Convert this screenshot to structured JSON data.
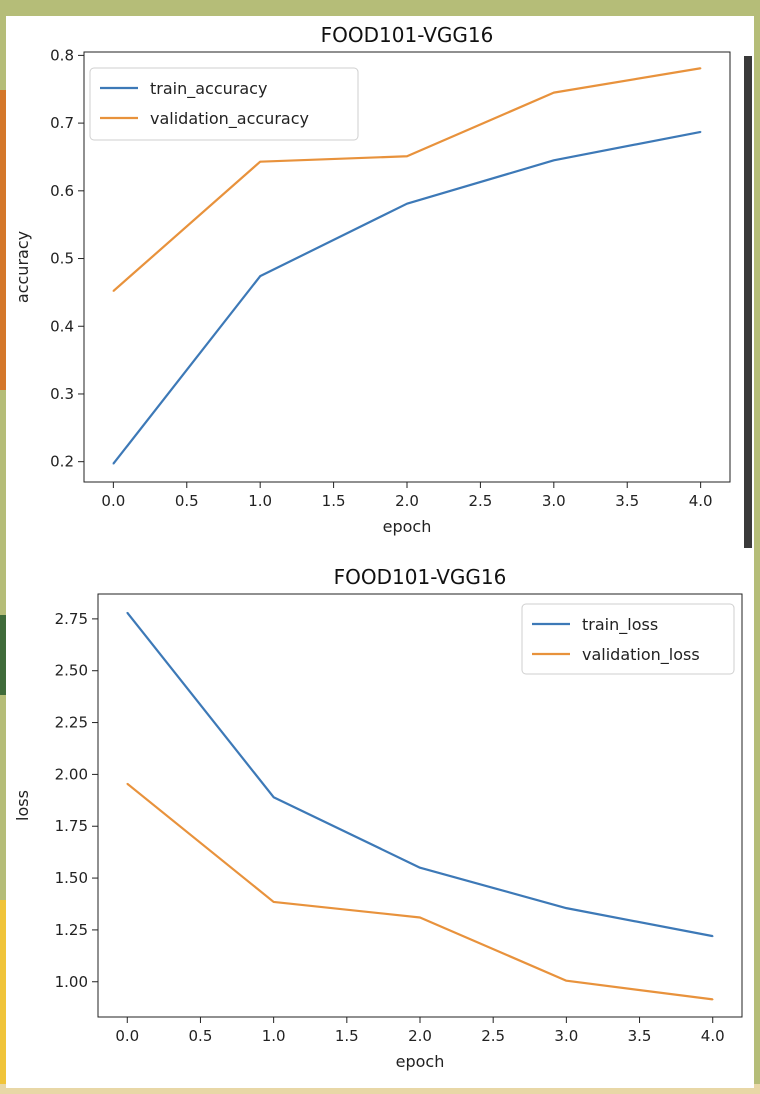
{
  "chart_data": [
    {
      "type": "line",
      "title": "FOOD101-VGG16",
      "xlabel": "epoch",
      "ylabel": "accuracy",
      "x": [
        0,
        1,
        2,
        3,
        4
      ],
      "xticks": [
        "0.0",
        "0.5",
        "1.0",
        "1.5",
        "2.0",
        "2.5",
        "3.0",
        "3.5",
        "4.0"
      ],
      "yticks": [
        "0.2",
        "0.3",
        "0.4",
        "0.5",
        "0.6",
        "0.7",
        "0.8"
      ],
      "xlim": [
        -0.2,
        4.2
      ],
      "ylim": [
        0.17,
        0.805
      ],
      "grid": false,
      "legend_position": "upper left",
      "series": [
        {
          "name": "train_accuracy",
          "color": "#3d79b7",
          "values": [
            0.197,
            0.474,
            0.581,
            0.645,
            0.687
          ]
        },
        {
          "name": "validation_accuracy",
          "color": "#e8923c",
          "values": [
            0.452,
            0.643,
            0.651,
            0.745,
            0.781
          ]
        }
      ]
    },
    {
      "type": "line",
      "title": "FOOD101-VGG16",
      "xlabel": "epoch",
      "ylabel": "loss",
      "x": [
        0,
        1,
        2,
        3,
        4
      ],
      "xticks": [
        "0.0",
        "0.5",
        "1.0",
        "1.5",
        "2.0",
        "2.5",
        "3.0",
        "3.5",
        "4.0"
      ],
      "yticks": [
        "1.00",
        "1.25",
        "1.50",
        "1.75",
        "2.00",
        "2.25",
        "2.50",
        "2.75"
      ],
      "xlim": [
        -0.2,
        4.2
      ],
      "ylim": [
        0.83,
        2.87
      ],
      "grid": false,
      "legend_position": "upper right",
      "series": [
        {
          "name": "train_loss",
          "color": "#3d79b7",
          "values": [
            2.78,
            1.89,
            1.55,
            1.355,
            1.22
          ]
        },
        {
          "name": "validation_loss",
          "color": "#e8923c",
          "values": [
            1.955,
            1.385,
            1.31,
            1.005,
            0.915
          ]
        }
      ]
    }
  ]
}
